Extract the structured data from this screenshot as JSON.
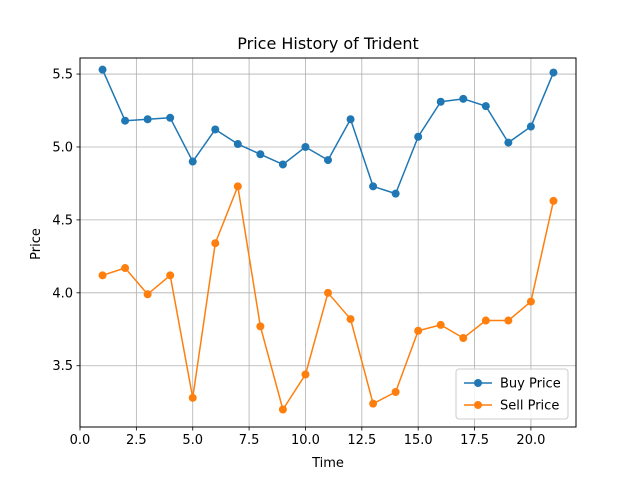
{
  "chart_data": {
    "type": "line",
    "title": "Price History of Trident",
    "xlabel": "Time",
    "ylabel": "Price",
    "xlim": [
      0.0,
      22.0
    ],
    "ylim": [
      3.08,
      5.61
    ],
    "xticks": [
      0.0,
      2.5,
      5.0,
      7.5,
      10.0,
      12.5,
      15.0,
      17.5,
      20.0
    ],
    "xtick_labels": [
      "0.0",
      "2.5",
      "5.0",
      "7.5",
      "10.0",
      "12.5",
      "15.0",
      "17.5",
      "20.0"
    ],
    "yticks": [
      3.5,
      4.0,
      4.5,
      5.0,
      5.5
    ],
    "ytick_labels": [
      "3.5",
      "4.0",
      "4.5",
      "5.0",
      "5.5"
    ],
    "grid": true,
    "legend_position": "lower-right",
    "x": [
      1,
      2,
      3,
      4,
      5,
      6,
      7,
      8,
      9,
      10,
      11,
      12,
      13,
      14,
      15,
      16,
      17,
      18,
      19,
      20,
      21
    ],
    "series": [
      {
        "name": "Buy Price",
        "color": "#1f77b4",
        "marker": "circle",
        "values": [
          5.53,
          5.18,
          5.19,
          5.2,
          4.9,
          5.12,
          5.02,
          4.95,
          4.88,
          5.0,
          4.91,
          5.19,
          4.73,
          4.68,
          5.07,
          5.31,
          5.33,
          5.28,
          5.03,
          5.14,
          5.51
        ]
      },
      {
        "name": "Sell Price",
        "color": "#ff7f0e",
        "marker": "circle",
        "values": [
          4.12,
          4.17,
          3.99,
          4.12,
          3.28,
          4.34,
          4.73,
          3.77,
          3.2,
          3.44,
          4.0,
          3.82,
          3.24,
          3.32,
          3.74,
          3.78,
          3.69,
          3.81,
          3.81,
          3.94,
          4.63
        ]
      }
    ]
  }
}
